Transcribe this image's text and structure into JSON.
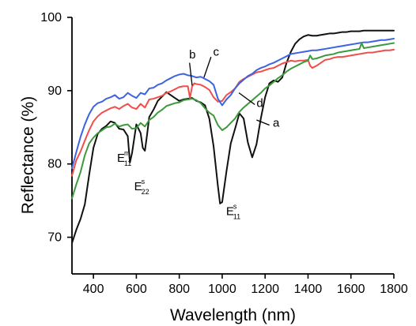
{
  "chart_data": {
    "type": "line",
    "xlabel": "Wavelength (nm)",
    "ylabel": "Reflectance (%)",
    "xlim": [
      300,
      1800
    ],
    "ylim": [
      65,
      100
    ],
    "x_ticks": [
      400,
      600,
      800,
      1000,
      1200,
      1400,
      1600,
      1800
    ],
    "y_ticks": [
      70,
      80,
      90,
      100
    ],
    "grid": false,
    "series": [
      {
        "name": "a",
        "color": "#111111",
        "x": [
          300,
          320,
          340,
          360,
          380,
          400,
          420,
          440,
          460,
          480,
          500,
          520,
          540,
          560,
          570,
          580,
          600,
          620,
          630,
          640,
          650,
          660,
          680,
          700,
          720,
          740,
          760,
          780,
          800,
          820,
          840,
          860,
          880,
          900,
          920,
          940,
          960,
          980,
          990,
          1000,
          1020,
          1040,
          1060,
          1080,
          1100,
          1120,
          1140,
          1160,
          1180,
          1200,
          1220,
          1240,
          1260,
          1280,
          1300,
          1320,
          1340,
          1360,
          1380,
          1400,
          1420,
          1440,
          1460,
          1480,
          1500,
          1520,
          1540,
          1560,
          1580,
          1600,
          1620,
          1640,
          1660,
          1680,
          1700,
          1720,
          1740,
          1760,
          1780,
          1800
        ],
        "y": [
          69.2,
          71.0,
          72.5,
          74.5,
          78.5,
          82.2,
          84.1,
          84.8,
          85.2,
          85.8,
          85.6,
          84.8,
          84.7,
          83.8,
          80.2,
          81.5,
          85.4,
          84.2,
          82.2,
          81.8,
          84.0,
          86.4,
          87.4,
          88.6,
          89.2,
          89.8,
          89.4,
          89.0,
          88.6,
          88.8,
          88.9,
          89.0,
          88.6,
          88.4,
          88.0,
          86.2,
          82.4,
          77.0,
          74.6,
          74.8,
          79.0,
          82.8,
          84.8,
          86.9,
          86.2,
          82.9,
          80.9,
          82.7,
          86.2,
          89.1,
          91.0,
          91.4,
          91.2,
          91.8,
          93.8,
          95.3,
          96.4,
          97.0,
          97.4,
          97.6,
          97.5,
          97.5,
          97.6,
          97.7,
          97.8,
          97.8,
          97.9,
          98.0,
          98.0,
          98.1,
          98.1,
          98.1,
          98.2,
          98.2,
          98.2,
          98.2,
          98.2,
          98.2,
          98.2,
          98.2
        ]
      },
      {
        "name": "b",
        "color": "#ef4f4b",
        "x": [
          300,
          320,
          340,
          360,
          380,
          400,
          420,
          440,
          460,
          480,
          500,
          520,
          540,
          560,
          580,
          600,
          620,
          640,
          660,
          680,
          700,
          720,
          740,
          760,
          780,
          800,
          820,
          840,
          850,
          860,
          870,
          880,
          900,
          920,
          940,
          960,
          980,
          1000,
          1020,
          1040,
          1060,
          1080,
          1100,
          1120,
          1140,
          1160,
          1180,
          1200,
          1220,
          1240,
          1260,
          1280,
          1300,
          1320,
          1340,
          1360,
          1380,
          1400,
          1410,
          1420,
          1440,
          1460,
          1480,
          1500,
          1520,
          1540,
          1560,
          1580,
          1600,
          1620,
          1640,
          1660,
          1680,
          1700,
          1720,
          1740,
          1760,
          1780,
          1800
        ],
        "y": [
          78.4,
          80.5,
          81.7,
          83.2,
          84.6,
          85.8,
          86.5,
          87.0,
          87.3,
          87.6,
          87.8,
          87.5,
          87.9,
          88.2,
          87.7,
          87.5,
          88.2,
          87.7,
          88.8,
          88.9,
          89.1,
          89.3,
          89.7,
          89.9,
          90.2,
          90.5,
          90.6,
          90.6,
          89.0,
          90.6,
          91.0,
          90.9,
          90.8,
          90.5,
          90.1,
          89.1,
          88.5,
          88.6,
          89.4,
          89.8,
          90.3,
          91.2,
          91.6,
          91.9,
          92.2,
          92.5,
          92.6,
          92.8,
          93.0,
          93.1,
          93.4,
          93.7,
          93.9,
          94.1,
          94.0,
          94.1,
          94.1,
          94.2,
          93.4,
          93.1,
          93.4,
          93.8,
          94.2,
          94.3,
          94.5,
          94.6,
          94.6,
          94.7,
          94.8,
          94.9,
          95.0,
          95.1,
          95.2,
          95.2,
          95.3,
          95.4,
          95.5,
          95.5,
          95.6
        ]
      },
      {
        "name": "c",
        "color": "#3d63e4",
        "x": [
          300,
          320,
          340,
          360,
          380,
          400,
          420,
          440,
          460,
          480,
          500,
          520,
          540,
          560,
          580,
          600,
          620,
          640,
          660,
          680,
          700,
          720,
          740,
          760,
          780,
          800,
          820,
          840,
          860,
          880,
          900,
          920,
          940,
          960,
          980,
          1000,
          1020,
          1040,
          1060,
          1080,
          1100,
          1120,
          1140,
          1160,
          1180,
          1200,
          1220,
          1240,
          1260,
          1280,
          1300,
          1320,
          1340,
          1360,
          1380,
          1400,
          1420,
          1440,
          1460,
          1480,
          1500,
          1520,
          1540,
          1560,
          1580,
          1600,
          1620,
          1640,
          1660,
          1680,
          1700,
          1720,
          1740,
          1760,
          1780,
          1800
        ],
        "y": [
          79.4,
          81.6,
          83.7,
          85.4,
          86.8,
          87.8,
          88.3,
          88.5,
          88.9,
          89.1,
          89.4,
          88.9,
          89.1,
          89.7,
          89.3,
          89.0,
          89.7,
          89.5,
          90.3,
          90.4,
          90.8,
          91.0,
          91.4,
          91.7,
          92.0,
          92.2,
          92.3,
          92.1,
          92.0,
          91.8,
          91.9,
          91.6,
          91.3,
          90.8,
          88.9,
          88.0,
          88.8,
          89.4,
          90.3,
          91.0,
          91.5,
          92.0,
          92.3,
          92.8,
          93.1,
          93.3,
          93.6,
          93.8,
          94.1,
          94.4,
          94.7,
          95.0,
          95.1,
          95.2,
          95.3,
          95.4,
          95.5,
          95.5,
          95.6,
          95.7,
          95.8,
          95.9,
          96.0,
          96.1,
          96.2,
          96.3,
          96.4,
          96.5,
          96.6,
          96.6,
          96.7,
          96.8,
          96.9,
          96.9,
          97.0,
          97.1
        ]
      },
      {
        "name": "d",
        "color": "#3c9a3c",
        "x": [
          300,
          320,
          340,
          360,
          380,
          400,
          420,
          440,
          460,
          480,
          500,
          520,
          540,
          560,
          580,
          600,
          620,
          640,
          660,
          680,
          700,
          720,
          740,
          760,
          780,
          800,
          820,
          840,
          860,
          880,
          900,
          920,
          940,
          960,
          980,
          1000,
          1020,
          1040,
          1060,
          1080,
          1100,
          1120,
          1140,
          1160,
          1180,
          1200,
          1220,
          1240,
          1260,
          1280,
          1300,
          1320,
          1340,
          1360,
          1380,
          1400,
          1410,
          1420,
          1440,
          1460,
          1480,
          1500,
          1520,
          1540,
          1560,
          1580,
          1600,
          1620,
          1640,
          1650,
          1660,
          1680,
          1700,
          1720,
          1740,
          1760,
          1780,
          1800
        ],
        "y": [
          75.3,
          77.2,
          78.9,
          81.2,
          82.8,
          83.6,
          84.2,
          84.6,
          85.0,
          85.1,
          85.5,
          85.1,
          85.3,
          85.4,
          84.8,
          84.9,
          85.6,
          85.1,
          86.0,
          86.4,
          87.0,
          87.4,
          87.9,
          88.1,
          88.3,
          88.4,
          88.7,
          88.8,
          88.9,
          88.7,
          88.3,
          87.6,
          87.0,
          86.6,
          85.3,
          84.6,
          85.0,
          85.6,
          86.2,
          87.1,
          87.7,
          88.2,
          88.7,
          89.2,
          89.7,
          90.3,
          90.7,
          91.2,
          91.7,
          92.1,
          92.6,
          93.0,
          93.3,
          93.6,
          93.9,
          94.1,
          94.8,
          94.3,
          94.4,
          94.6,
          94.8,
          94.9,
          95.0,
          95.2,
          95.3,
          95.4,
          95.5,
          95.6,
          95.7,
          96.5,
          95.8,
          95.9,
          96.0,
          96.1,
          96.2,
          96.3,
          96.4,
          96.5
        ]
      }
    ],
    "annotations": [
      {
        "main": "E",
        "sup": "m",
        "sub": "11"
      },
      {
        "main": "E",
        "sup": "s",
        "sub": "22"
      },
      {
        "main": "E",
        "sup": "s",
        "sub": "11"
      }
    ]
  }
}
